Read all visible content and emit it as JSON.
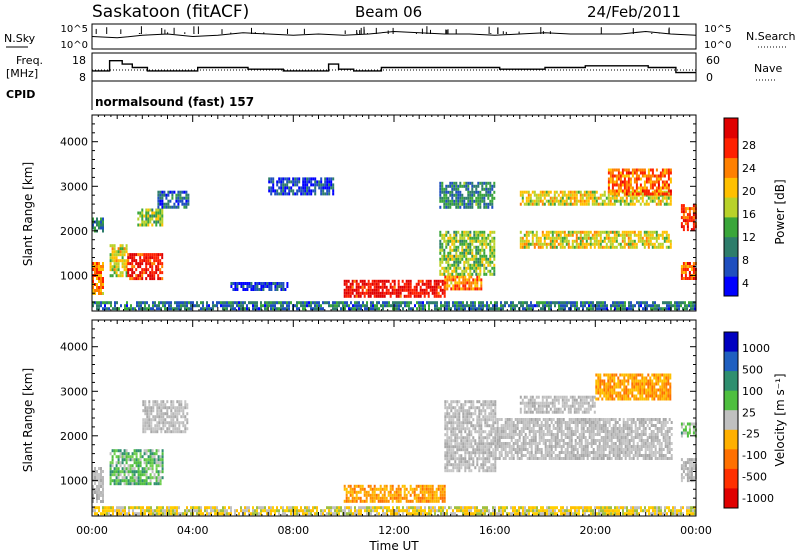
{
  "header": {
    "station": "Saskatoon (fitACF)",
    "beam": "Beam 06",
    "date": "24/Feb/2011"
  },
  "top_panels": {
    "nsky_label": "N.Sky",
    "nsky_ticks": [
      "10^5",
      "10^0"
    ],
    "nsearch_label": "N.Search",
    "nsearch_ticks": [
      "10^5",
      "10^0"
    ],
    "freq_label": "Freq.",
    "freq_unit": "[MHz]",
    "freq_ticks": [
      "18",
      "8"
    ],
    "nave_label": "Nave",
    "nave_ticks": [
      "60",
      "0"
    ],
    "cpid_label": "CPID",
    "cpid_text": "normalsound (fast) 157",
    "nsky_series": [
      0.5,
      0.45,
      0.55,
      0.6,
      0.5,
      0.55,
      0.65,
      0.6,
      0.55,
      0.6,
      0.55,
      0.6,
      0.7,
      0.65,
      0.6,
      0.6,
      0.55,
      0.6,
      0.65,
      0.6,
      0.6,
      0.6,
      0.7,
      0.6,
      0.55
    ],
    "freq_series_hours": [
      0,
      0.7,
      1.2,
      1.6,
      2.2,
      4.2,
      6.2,
      7.6,
      9.4,
      9.8,
      10.4,
      11.5,
      16.2,
      18.0,
      19.6,
      22.1,
      23.2,
      24
    ],
    "freq_series_mhz": [
      11,
      17,
      15,
      13,
      11,
      13,
      12,
      11,
      15,
      12,
      11,
      13,
      12,
      13,
      14,
      13,
      10,
      10
    ]
  },
  "chart_data": [
    {
      "type": "heatmap",
      "panel": "power",
      "ylabel": "Slant Range [km]",
      "xlabel": "",
      "ylim": [
        200,
        4600
      ],
      "xlim": [
        0,
        24
      ],
      "yticks": [
        "1000",
        "2000",
        "3000",
        "4000"
      ],
      "colorbar_label": "Power [dB]",
      "colorbar_ticks": [
        "28",
        "24",
        "20",
        "16",
        "12",
        "8",
        "4"
      ],
      "colorbar_colors": [
        "#0000ff",
        "#1f4fbf",
        "#2e7d6b",
        "#3aa63a",
        "#b8d22a",
        "#ffc000",
        "#ff8000",
        "#ff2000",
        "#e00000"
      ],
      "regions": [
        {
          "x": [
            0.0,
            0.4
          ],
          "y": [
            600,
            1300
          ],
          "level": 0.7
        },
        {
          "x": [
            0.0,
            0.4
          ],
          "y": [
            2000,
            2300
          ],
          "level": 0.3
        },
        {
          "x": [
            0.7,
            1.4
          ],
          "y": [
            1000,
            1700
          ],
          "level": 0.55
        },
        {
          "x": [
            1.4,
            2.8
          ],
          "y": [
            900,
            1500
          ],
          "level": 0.85
        },
        {
          "x": [
            1.8,
            2.8
          ],
          "y": [
            2100,
            2500
          ],
          "level": 0.45
        },
        {
          "x": [
            2.6,
            3.8
          ],
          "y": [
            2500,
            2900
          ],
          "level": 0.2
        },
        {
          "x": [
            5.5,
            7.8
          ],
          "y": [
            700,
            850
          ],
          "level": 0.15
        },
        {
          "x": [
            7.0,
            9.6
          ],
          "y": [
            2800,
            3200
          ],
          "level": 0.15
        },
        {
          "x": [
            10.0,
            14.0
          ],
          "y": [
            550,
            900
          ],
          "level": 0.92
        },
        {
          "x": [
            14.0,
            15.5
          ],
          "y": [
            700,
            1000
          ],
          "level": 0.7
        },
        {
          "x": [
            13.8,
            16.0
          ],
          "y": [
            1000,
            2000
          ],
          "level": 0.45
        },
        {
          "x": [
            13.8,
            16.0
          ],
          "y": [
            2500,
            3100
          ],
          "level": 0.3
        },
        {
          "x": [
            17.0,
            23.0
          ],
          "y": [
            1600,
            2000
          ],
          "level": 0.55
        },
        {
          "x": [
            17.0,
            23.0
          ],
          "y": [
            2600,
            2900
          ],
          "level": 0.55
        },
        {
          "x": [
            20.5,
            23.0
          ],
          "y": [
            2800,
            3400
          ],
          "level": 0.75
        },
        {
          "x": [
            23.4,
            24.0
          ],
          "y": [
            900,
            1300
          ],
          "level": 0.78
        },
        {
          "x": [
            23.4,
            24.0
          ],
          "y": [
            2000,
            2600
          ],
          "level": 0.8
        },
        {
          "x": [
            0.0,
            24.0
          ],
          "y": [
            250,
            420
          ],
          "level": 0.25
        }
      ]
    },
    {
      "type": "heatmap",
      "panel": "velocity",
      "ylabel": "Slant Range [km]",
      "xlabel": "Time UT",
      "ylim": [
        200,
        4600
      ],
      "xlim": [
        0,
        24
      ],
      "yticks": [
        "1000",
        "2000",
        "3000",
        "4000"
      ],
      "xticks": [
        "00:00",
        "04:00",
        "08:00",
        "12:00",
        "16:00",
        "20:00",
        "00:00"
      ],
      "colorbar_label": "Velocity [m s⁻¹]",
      "colorbar_ticks": [
        "1000",
        "500",
        "100",
        "25",
        "-25",
        "-100",
        "-500",
        "-1000"
      ],
      "colorbar_colors": [
        "#0000c0",
        "#1f5fc0",
        "#2f8f6f",
        "#4fbf3f",
        "#c0c0c0",
        "#ffb000",
        "#ff7000",
        "#ff3000",
        "#e00000"
      ],
      "regions": [
        {
          "x": [
            0.0,
            0.4
          ],
          "y": [
            500,
            1300
          ],
          "kind": "grey"
        },
        {
          "x": [
            0.7,
            2.8
          ],
          "y": [
            900,
            1700
          ],
          "kind": "green"
        },
        {
          "x": [
            2.0,
            3.8
          ],
          "y": [
            2100,
            2800
          ],
          "kind": "grey"
        },
        {
          "x": [
            10.0,
            14.0
          ],
          "y": [
            550,
            900
          ],
          "kind": "orange"
        },
        {
          "x": [
            14.0,
            16.0
          ],
          "y": [
            1200,
            2800
          ],
          "kind": "grey"
        },
        {
          "x": [
            16.0,
            23.0
          ],
          "y": [
            1500,
            2400
          ],
          "kind": "grey"
        },
        {
          "x": [
            17.0,
            20.0
          ],
          "y": [
            2500,
            2900
          ],
          "kind": "grey"
        },
        {
          "x": [
            20.0,
            23.0
          ],
          "y": [
            2800,
            3400
          ],
          "kind": "orange"
        },
        {
          "x": [
            23.4,
            24.0
          ],
          "y": [
            1000,
            1500
          ],
          "kind": "grey"
        },
        {
          "x": [
            23.4,
            24.0
          ],
          "y": [
            2000,
            2300
          ],
          "kind": "green"
        },
        {
          "x": [
            0.0,
            24.0
          ],
          "y": [
            250,
            420
          ],
          "kind": "yellow"
        }
      ]
    }
  ]
}
